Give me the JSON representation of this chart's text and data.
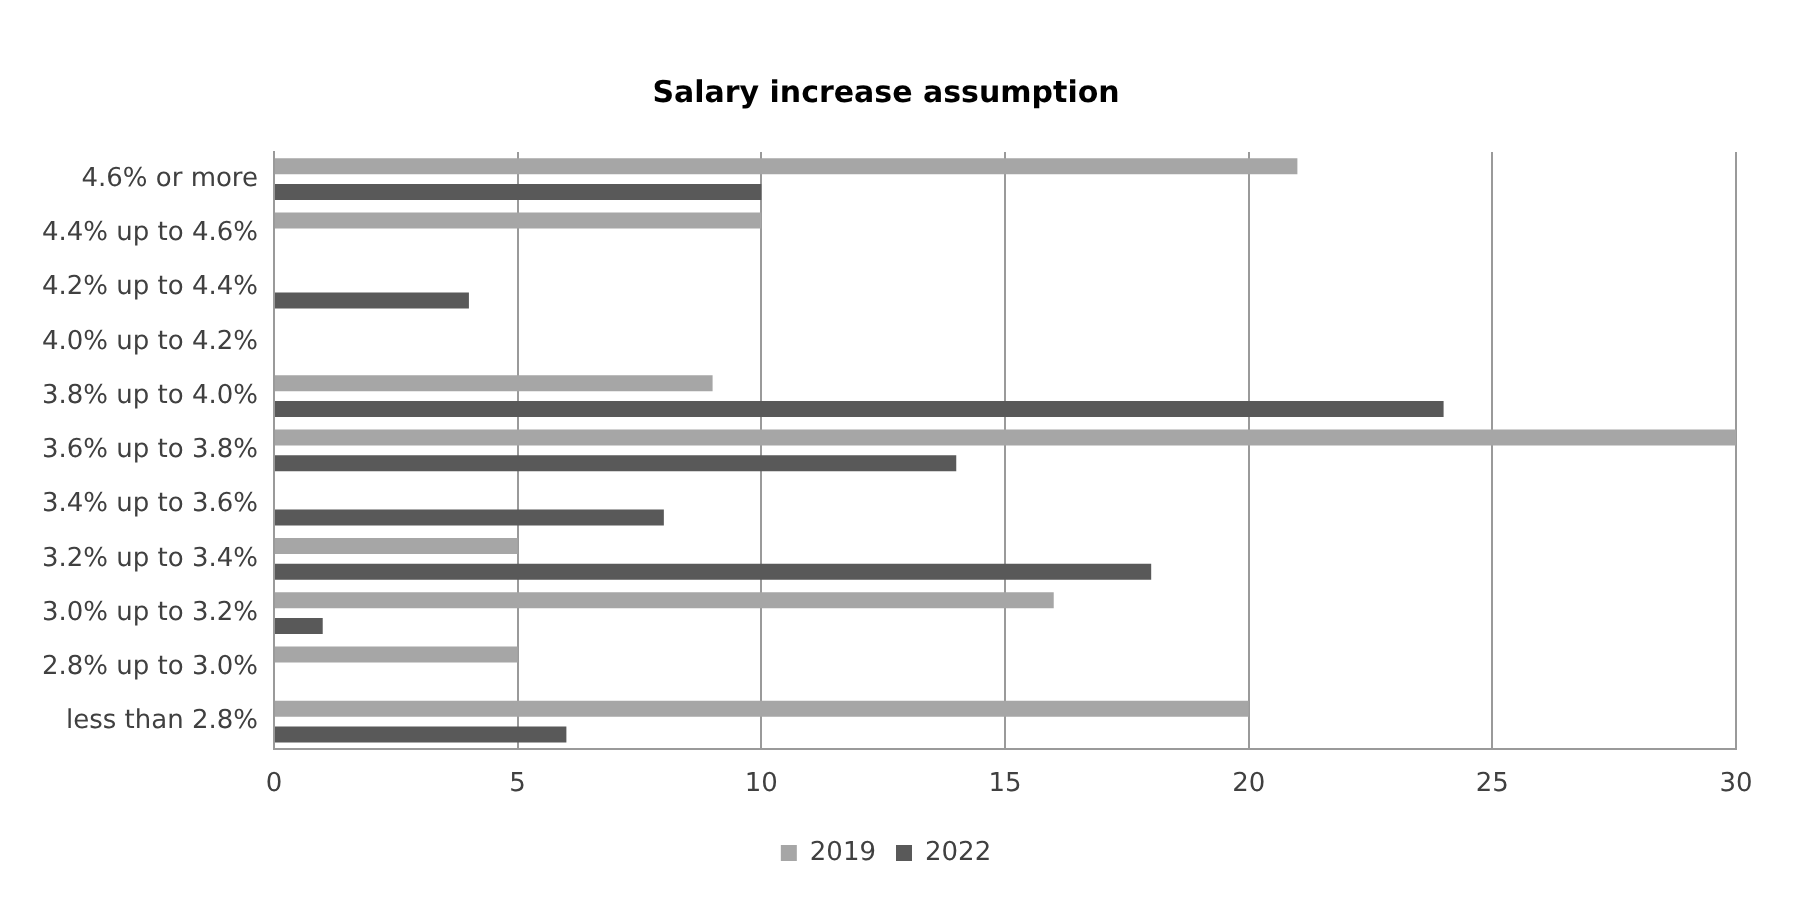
{
  "chart_data": {
    "type": "bar",
    "title": "Salary increase assumption",
    "orientation": "horizontal",
    "categories": [
      "4.6% or more",
      "4.4% up to 4.6%",
      "4.2% up to 4.4%",
      "4.0% up to 4.2%",
      "3.8% up to 4.0%",
      "3.6% up to 3.8%",
      "3.4% up to 3.6%",
      "3.2% up to 3.4%",
      "3.0% up to 3.2%",
      "2.8% up to 3.0%",
      "less than 2.8%"
    ],
    "series": [
      {
        "name": "2019",
        "color": "#a6a6a6",
        "values": [
          21,
          10,
          0,
          0,
          9,
          30,
          0,
          5,
          16,
          5,
          20
        ]
      },
      {
        "name": "2022",
        "color": "#595959",
        "values": [
          10,
          0,
          4,
          0,
          24,
          14,
          8,
          18,
          1,
          0,
          6
        ]
      }
    ],
    "xlim": [
      0,
      30
    ],
    "xticks": [
      0,
      5,
      10,
      15,
      20,
      25,
      30
    ],
    "grid": "x",
    "legend": "bottom"
  }
}
